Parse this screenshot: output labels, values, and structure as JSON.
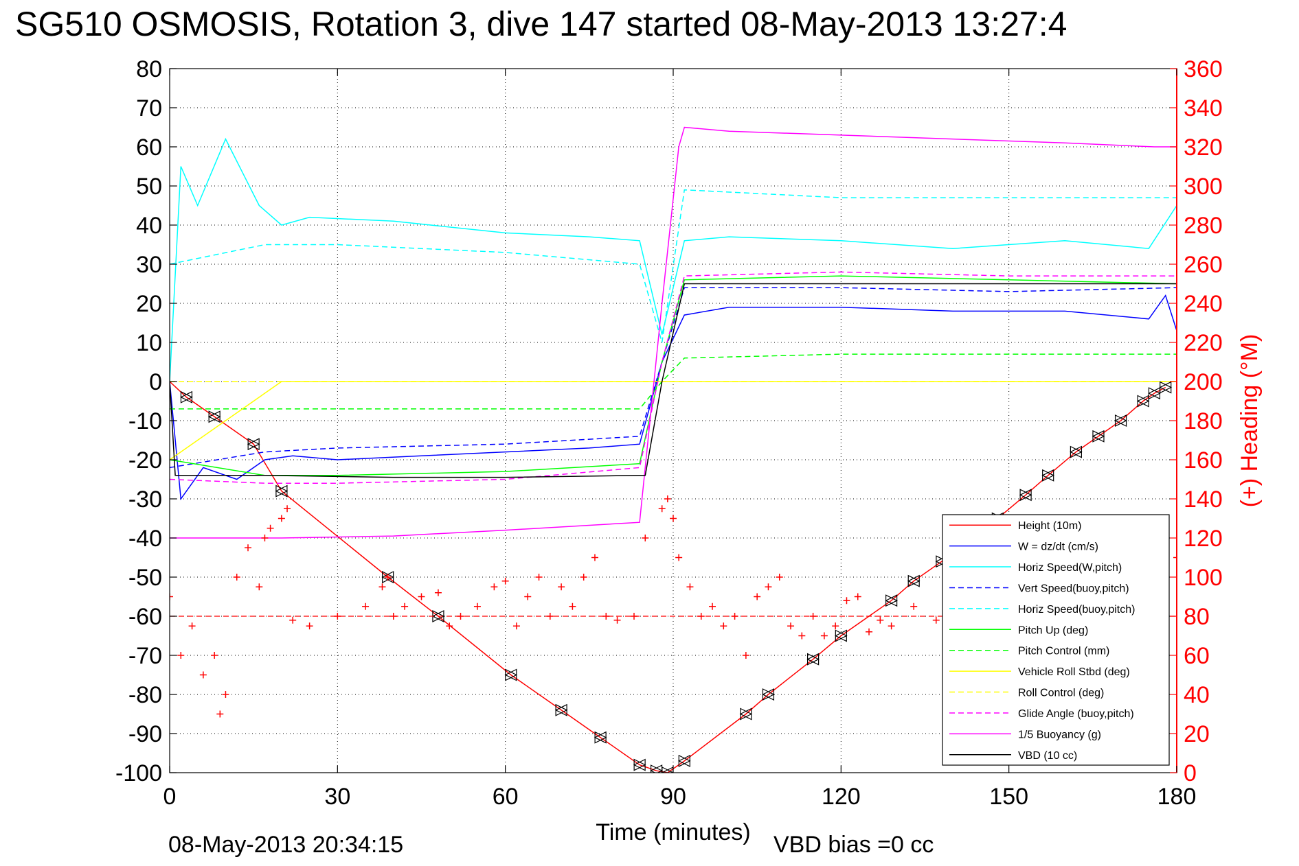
{
  "title": "SG510 OSMOSIS, Rotation 3, dive 147 started 08-May-2013 13:27:4",
  "timestamp": "08-May-2013 20:34:15",
  "vbd_bias": "VBD bias =0 cc",
  "chart_data": {
    "type": "line",
    "xlabel": "Time (minutes)",
    "ylabel_right": "(+) Heading (°M)",
    "xlim": [
      0,
      180
    ],
    "ylim": [
      -100,
      80
    ],
    "ylim_right": [
      0,
      360
    ],
    "x_ticks": [
      0,
      30,
      60,
      90,
      120,
      150,
      180
    ],
    "y_ticks": [
      80,
      70,
      60,
      50,
      40,
      30,
      20,
      10,
      0,
      -10,
      -20,
      -30,
      -40,
      -50,
      -60,
      -70,
      -80,
      -90,
      -100
    ],
    "y_ticks_right": [
      360,
      340,
      320,
      300,
      280,
      260,
      240,
      220,
      200,
      180,
      160,
      140,
      120,
      100,
      80,
      60,
      40,
      20,
      0
    ],
    "grid": true,
    "legend_position": "bottom-right",
    "colors": {
      "height": "#ff0000",
      "w": "#0000ff",
      "horiz_speed": "#00ffff",
      "pitch": "#00ff00",
      "roll": "#ffff00",
      "glide": "#ff00ff",
      "buoyancy": "#ff00ff",
      "vbd": "#000000",
      "heading": "#ff0000"
    },
    "series": [
      {
        "name": "Height (10m)",
        "color": "#ff0000",
        "dash": false,
        "x": [
          0,
          3,
          8,
          15,
          20,
          39,
          48,
          61,
          70,
          77,
          84,
          87,
          89,
          92,
          103,
          107,
          115,
          120,
          129,
          133,
          138,
          148,
          153,
          157,
          162,
          166,
          170,
          174,
          176,
          178
        ],
        "y": [
          0,
          -4,
          -9,
          -16,
          -28,
          -50,
          -60,
          -75,
          -84,
          -91,
          -98,
          -99.5,
          -100,
          -97,
          -85,
          -80,
          -71,
          -65,
          -56,
          -51,
          -46,
          -35,
          -29,
          -24,
          -18,
          -14,
          -10,
          -5,
          -3,
          -1.5
        ]
      },
      {
        "name": "W = dz/dt (cm/s)",
        "color": "#0000ff",
        "dash": false,
        "x": [
          0,
          2,
          6,
          12,
          17,
          22,
          30,
          45,
          60,
          75,
          84,
          88,
          92,
          100,
          120,
          140,
          160,
          175,
          178,
          180
        ],
        "y": [
          0,
          -30,
          -22,
          -25,
          -20,
          -19,
          -20,
          -19,
          -18,
          -17,
          -16,
          5,
          17,
          19,
          19,
          18,
          18,
          16,
          22,
          13
        ]
      },
      {
        "name": "Horiz Speed(W,pitch)",
        "color": "#00ffff",
        "dash": false,
        "x": [
          0,
          2,
          5,
          10,
          16,
          20,
          25,
          40,
          60,
          75,
          84,
          88,
          92,
          100,
          120,
          140,
          160,
          175,
          180
        ],
        "y": [
          0,
          55,
          45,
          62,
          45,
          40,
          42,
          41,
          38,
          37,
          36,
          12,
          36,
          37,
          36,
          34,
          36,
          34,
          45
        ]
      },
      {
        "name": "Vert Speed(buoy,pitch)",
        "color": "#0000ff",
        "dash": true,
        "x": [
          0,
          17,
          30,
          60,
          84,
          88,
          92,
          120,
          150,
          180
        ],
        "y": [
          -22,
          -18,
          -17,
          -16,
          -14,
          5,
          24,
          24,
          23,
          24
        ]
      },
      {
        "name": "Horiz Speed(buoy,pitch)",
        "color": "#00ffff",
        "dash": true,
        "x": [
          0,
          17,
          30,
          60,
          84,
          88,
          92,
          120,
          150,
          180
        ],
        "y": [
          30,
          35,
          35,
          33,
          30,
          10,
          49,
          47,
          47,
          47
        ]
      },
      {
        "name": "Pitch Up (deg)",
        "color": "#00ff00",
        "dash": false,
        "x": [
          0,
          17,
          30,
          60,
          84,
          88,
          92,
          120,
          150,
          180
        ],
        "y": [
          -20,
          -24,
          -24,
          -23,
          -21,
          5,
          26,
          27,
          26,
          25
        ]
      },
      {
        "name": "Pitch Control (mm)",
        "color": "#00ff00",
        "dash": true,
        "x": [
          0,
          17,
          30,
          60,
          84,
          88,
          92,
          120,
          150,
          180
        ],
        "y": [
          -7,
          -7,
          -7,
          -7,
          -7,
          0,
          6,
          7,
          7,
          7
        ]
      },
      {
        "name": "Vehicle Roll Stbd (deg)",
        "color": "#ffff00",
        "dash": false,
        "x": [
          0,
          20,
          40,
          60,
          84,
          88,
          92,
          120,
          150,
          180
        ],
        "y": [
          -20,
          0,
          0,
          0,
          0,
          0,
          0,
          0,
          0,
          0
        ]
      },
      {
        "name": "Roll Control (deg)",
        "color": "#ffff00",
        "dash": true,
        "x": [
          0,
          20,
          40,
          60,
          84,
          88,
          92,
          120,
          150,
          180
        ],
        "y": [
          0,
          0,
          0,
          0,
          0,
          0,
          0,
          0,
          0,
          0
        ]
      },
      {
        "name": "Glide Angle (buoy,pitch)",
        "color": "#ff00ff",
        "dash": true,
        "x": [
          0,
          17,
          30,
          60,
          84,
          88,
          92,
          120,
          150,
          180
        ],
        "y": [
          -25,
          -26,
          -26,
          -25,
          -22,
          5,
          27,
          28,
          27,
          27
        ]
      },
      {
        "name": "1/5 Buoyancy (g)",
        "color": "#ff00ff",
        "dash": false,
        "x": [
          0,
          1,
          2,
          20,
          40,
          60,
          84,
          88,
          91,
          92,
          100,
          120,
          140,
          160,
          176,
          180
        ],
        "y": [
          -40,
          -40,
          -40,
          -40,
          -39.5,
          -38,
          -36,
          20,
          60,
          65,
          64,
          63,
          62,
          61,
          60,
          60
        ]
      },
      {
        "name": "VBD (10 cc)",
        "color": "#000000",
        "dash": false,
        "x": [
          0,
          1,
          17,
          40,
          60,
          84,
          85,
          88,
          92,
          100,
          120,
          150,
          180
        ],
        "y": [
          0,
          -24,
          -24,
          -24.5,
          -24.5,
          -24,
          -24,
          0,
          25,
          25,
          25,
          25,
          25
        ]
      }
    ],
    "heading": {
      "name": "(+) Heading",
      "color": "#ff0000",
      "mean": 80,
      "x": [
        0,
        2,
        4,
        6,
        8,
        9,
        10,
        12,
        14,
        16,
        17,
        18,
        20,
        21,
        22,
        25,
        30,
        35,
        38,
        39,
        40,
        42,
        45,
        48,
        50,
        52,
        55,
        58,
        60,
        62,
        64,
        66,
        68,
        70,
        72,
        74,
        76,
        78,
        80,
        83,
        85,
        88,
        89,
        90,
        91,
        93,
        95,
        97,
        99,
        101,
        103,
        105,
        107,
        109,
        111,
        113,
        115,
        117,
        119,
        121,
        123,
        125,
        127,
        129,
        133,
        137,
        141,
        145,
        150,
        155,
        160,
        165,
        170,
        175,
        178,
        180
      ],
      "y": [
        90,
        60,
        75,
        50,
        60,
        30,
        40,
        100,
        115,
        95,
        120,
        125,
        130,
        135,
        78,
        75,
        80,
        85,
        95,
        100,
        80,
        85,
        90,
        92,
        75,
        80,
        85,
        95,
        98,
        75,
        90,
        100,
        80,
        95,
        85,
        100,
        110,
        80,
        78,
        80,
        120,
        135,
        140,
        130,
        110,
        95,
        80,
        85,
        75,
        80,
        60,
        90,
        95,
        100,
        75,
        70,
        80,
        70,
        75,
        88,
        90,
        72,
        78,
        75,
        85,
        78,
        72,
        80,
        75,
        80,
        78,
        82,
        80,
        85,
        95,
        110
      ]
    }
  }
}
